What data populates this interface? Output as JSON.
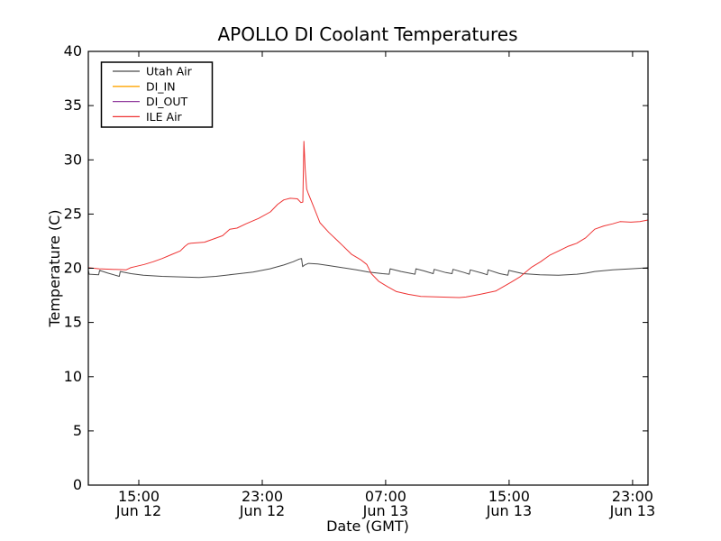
{
  "chart_data": {
    "type": "line",
    "title": "APOLLO DI Coolant Temperatures",
    "xlabel": "Date (GMT)",
    "ylabel": "Temperature (C)",
    "ylim": [
      0,
      40
    ],
    "xlim": [
      11.73,
      48
    ],
    "x_units": "hours since Jun 12 00:00 GMT",
    "grid": false,
    "legend_position": "upper left",
    "yticks": [
      0,
      5,
      10,
      15,
      20,
      25,
      30,
      35,
      40
    ],
    "xticks": [
      {
        "hour": 15,
        "time": "15:00",
        "date": "Jun 12"
      },
      {
        "hour": 23,
        "time": "23:00",
        "date": "Jun 12"
      },
      {
        "hour": 31,
        "time": "07:00",
        "date": "Jun 13"
      },
      {
        "hour": 39,
        "time": "15:00",
        "date": "Jun 13"
      },
      {
        "hour": 47,
        "time": "23:00",
        "date": "Jun 13"
      }
    ],
    "series": [
      {
        "name": "Utah Air",
        "color": "#4a4a4a",
        "points": [
          [
            11.73,
            19.8
          ],
          [
            11.79,
            19.45
          ],
          [
            12.4,
            19.4
          ],
          [
            12.46,
            19.8
          ],
          [
            13.0,
            19.55
          ],
          [
            13.74,
            19.25
          ],
          [
            13.8,
            19.7
          ],
          [
            14.5,
            19.5
          ],
          [
            15.3,
            19.35
          ],
          [
            16.5,
            19.25
          ],
          [
            17.7,
            19.2
          ],
          [
            18.9,
            19.15
          ],
          [
            20.0,
            19.25
          ],
          [
            21.2,
            19.45
          ],
          [
            22.4,
            19.65
          ],
          [
            23.5,
            19.95
          ],
          [
            24.4,
            20.3
          ],
          [
            25.0,
            20.6
          ],
          [
            25.4,
            20.85
          ],
          [
            25.55,
            20.9
          ],
          [
            25.62,
            20.15
          ],
          [
            25.75,
            20.3
          ],
          [
            26.0,
            20.45
          ],
          [
            26.6,
            20.4
          ],
          [
            27.3,
            20.25
          ],
          [
            28.2,
            20.05
          ],
          [
            29.1,
            19.85
          ],
          [
            29.9,
            19.65
          ],
          [
            30.8,
            19.5
          ],
          [
            31.23,
            19.45
          ],
          [
            31.29,
            19.95
          ],
          [
            32.0,
            19.7
          ],
          [
            32.9,
            19.45
          ],
          [
            32.96,
            19.95
          ],
          [
            33.5,
            19.75
          ],
          [
            34.08,
            19.5
          ],
          [
            34.14,
            19.9
          ],
          [
            34.9,
            19.6
          ],
          [
            35.3,
            19.5
          ],
          [
            35.36,
            19.9
          ],
          [
            36.1,
            19.6
          ],
          [
            36.42,
            19.45
          ],
          [
            36.48,
            19.85
          ],
          [
            37.25,
            19.55
          ],
          [
            37.58,
            19.4
          ],
          [
            37.64,
            19.85
          ],
          [
            38.4,
            19.5
          ],
          [
            38.92,
            19.35
          ],
          [
            38.98,
            19.8
          ],
          [
            39.9,
            19.5
          ],
          [
            41.0,
            19.4
          ],
          [
            42.2,
            19.35
          ],
          [
            43.4,
            19.45
          ],
          [
            44.0,
            19.55
          ],
          [
            44.55,
            19.7
          ],
          [
            45.72,
            19.85
          ],
          [
            46.9,
            19.95
          ],
          [
            47.5,
            20.0
          ],
          [
            48.0,
            20.05
          ]
        ]
      },
      {
        "name": "DI_IN",
        "color": "#ffa500",
        "points": []
      },
      {
        "name": "DI_OUT",
        "color": "#9340a0",
        "points": []
      },
      {
        "name": "ILE Air",
        "color": "#ee3333",
        "points": [
          [
            11.73,
            20.05
          ],
          [
            12.43,
            19.95
          ],
          [
            13.31,
            19.9
          ],
          [
            14.18,
            19.85
          ],
          [
            14.47,
            20.05
          ],
          [
            14.77,
            20.15
          ],
          [
            15.35,
            20.35
          ],
          [
            15.93,
            20.6
          ],
          [
            16.52,
            20.9
          ],
          [
            17.1,
            21.25
          ],
          [
            17.69,
            21.6
          ],
          [
            17.98,
            22.0
          ],
          [
            18.2,
            22.25
          ],
          [
            18.39,
            22.3
          ],
          [
            19.26,
            22.4
          ],
          [
            19.85,
            22.7
          ],
          [
            20.43,
            23.0
          ],
          [
            20.9,
            23.6
          ],
          [
            21.36,
            23.7
          ],
          [
            21.95,
            24.1
          ],
          [
            22.77,
            24.6
          ],
          [
            23.53,
            25.2
          ],
          [
            24.0,
            25.9
          ],
          [
            24.4,
            26.3
          ],
          [
            24.81,
            26.45
          ],
          [
            25.28,
            26.4
          ],
          [
            25.51,
            26.05
          ],
          [
            25.63,
            26.1
          ],
          [
            25.7,
            31.7
          ],
          [
            25.78,
            29.2
          ],
          [
            25.88,
            27.3
          ],
          [
            25.98,
            26.9
          ],
          [
            26.27,
            25.9
          ],
          [
            26.74,
            24.2
          ],
          [
            27.32,
            23.3
          ],
          [
            27.91,
            22.5
          ],
          [
            28.2,
            22.1
          ],
          [
            28.78,
            21.3
          ],
          [
            29.37,
            20.8
          ],
          [
            29.78,
            20.35
          ],
          [
            30.07,
            19.5
          ],
          [
            30.54,
            18.8
          ],
          [
            31.12,
            18.3
          ],
          [
            31.7,
            17.85
          ],
          [
            32.46,
            17.6
          ],
          [
            33.28,
            17.4
          ],
          [
            34.5,
            17.35
          ],
          [
            35.79,
            17.3
          ],
          [
            36.2,
            17.35
          ],
          [
            37.13,
            17.6
          ],
          [
            38.13,
            17.9
          ],
          [
            39.12,
            18.7
          ],
          [
            39.7,
            19.2
          ],
          [
            40.46,
            20.1
          ],
          [
            41.04,
            20.6
          ],
          [
            41.63,
            21.2
          ],
          [
            42.21,
            21.6
          ],
          [
            42.79,
            22.0
          ],
          [
            43.38,
            22.3
          ],
          [
            43.96,
            22.8
          ],
          [
            44.55,
            23.6
          ],
          [
            45.13,
            23.9
          ],
          [
            45.72,
            24.1
          ],
          [
            46.19,
            24.3
          ],
          [
            46.89,
            24.25
          ],
          [
            47.47,
            24.3
          ],
          [
            48.0,
            24.45
          ]
        ]
      }
    ]
  }
}
